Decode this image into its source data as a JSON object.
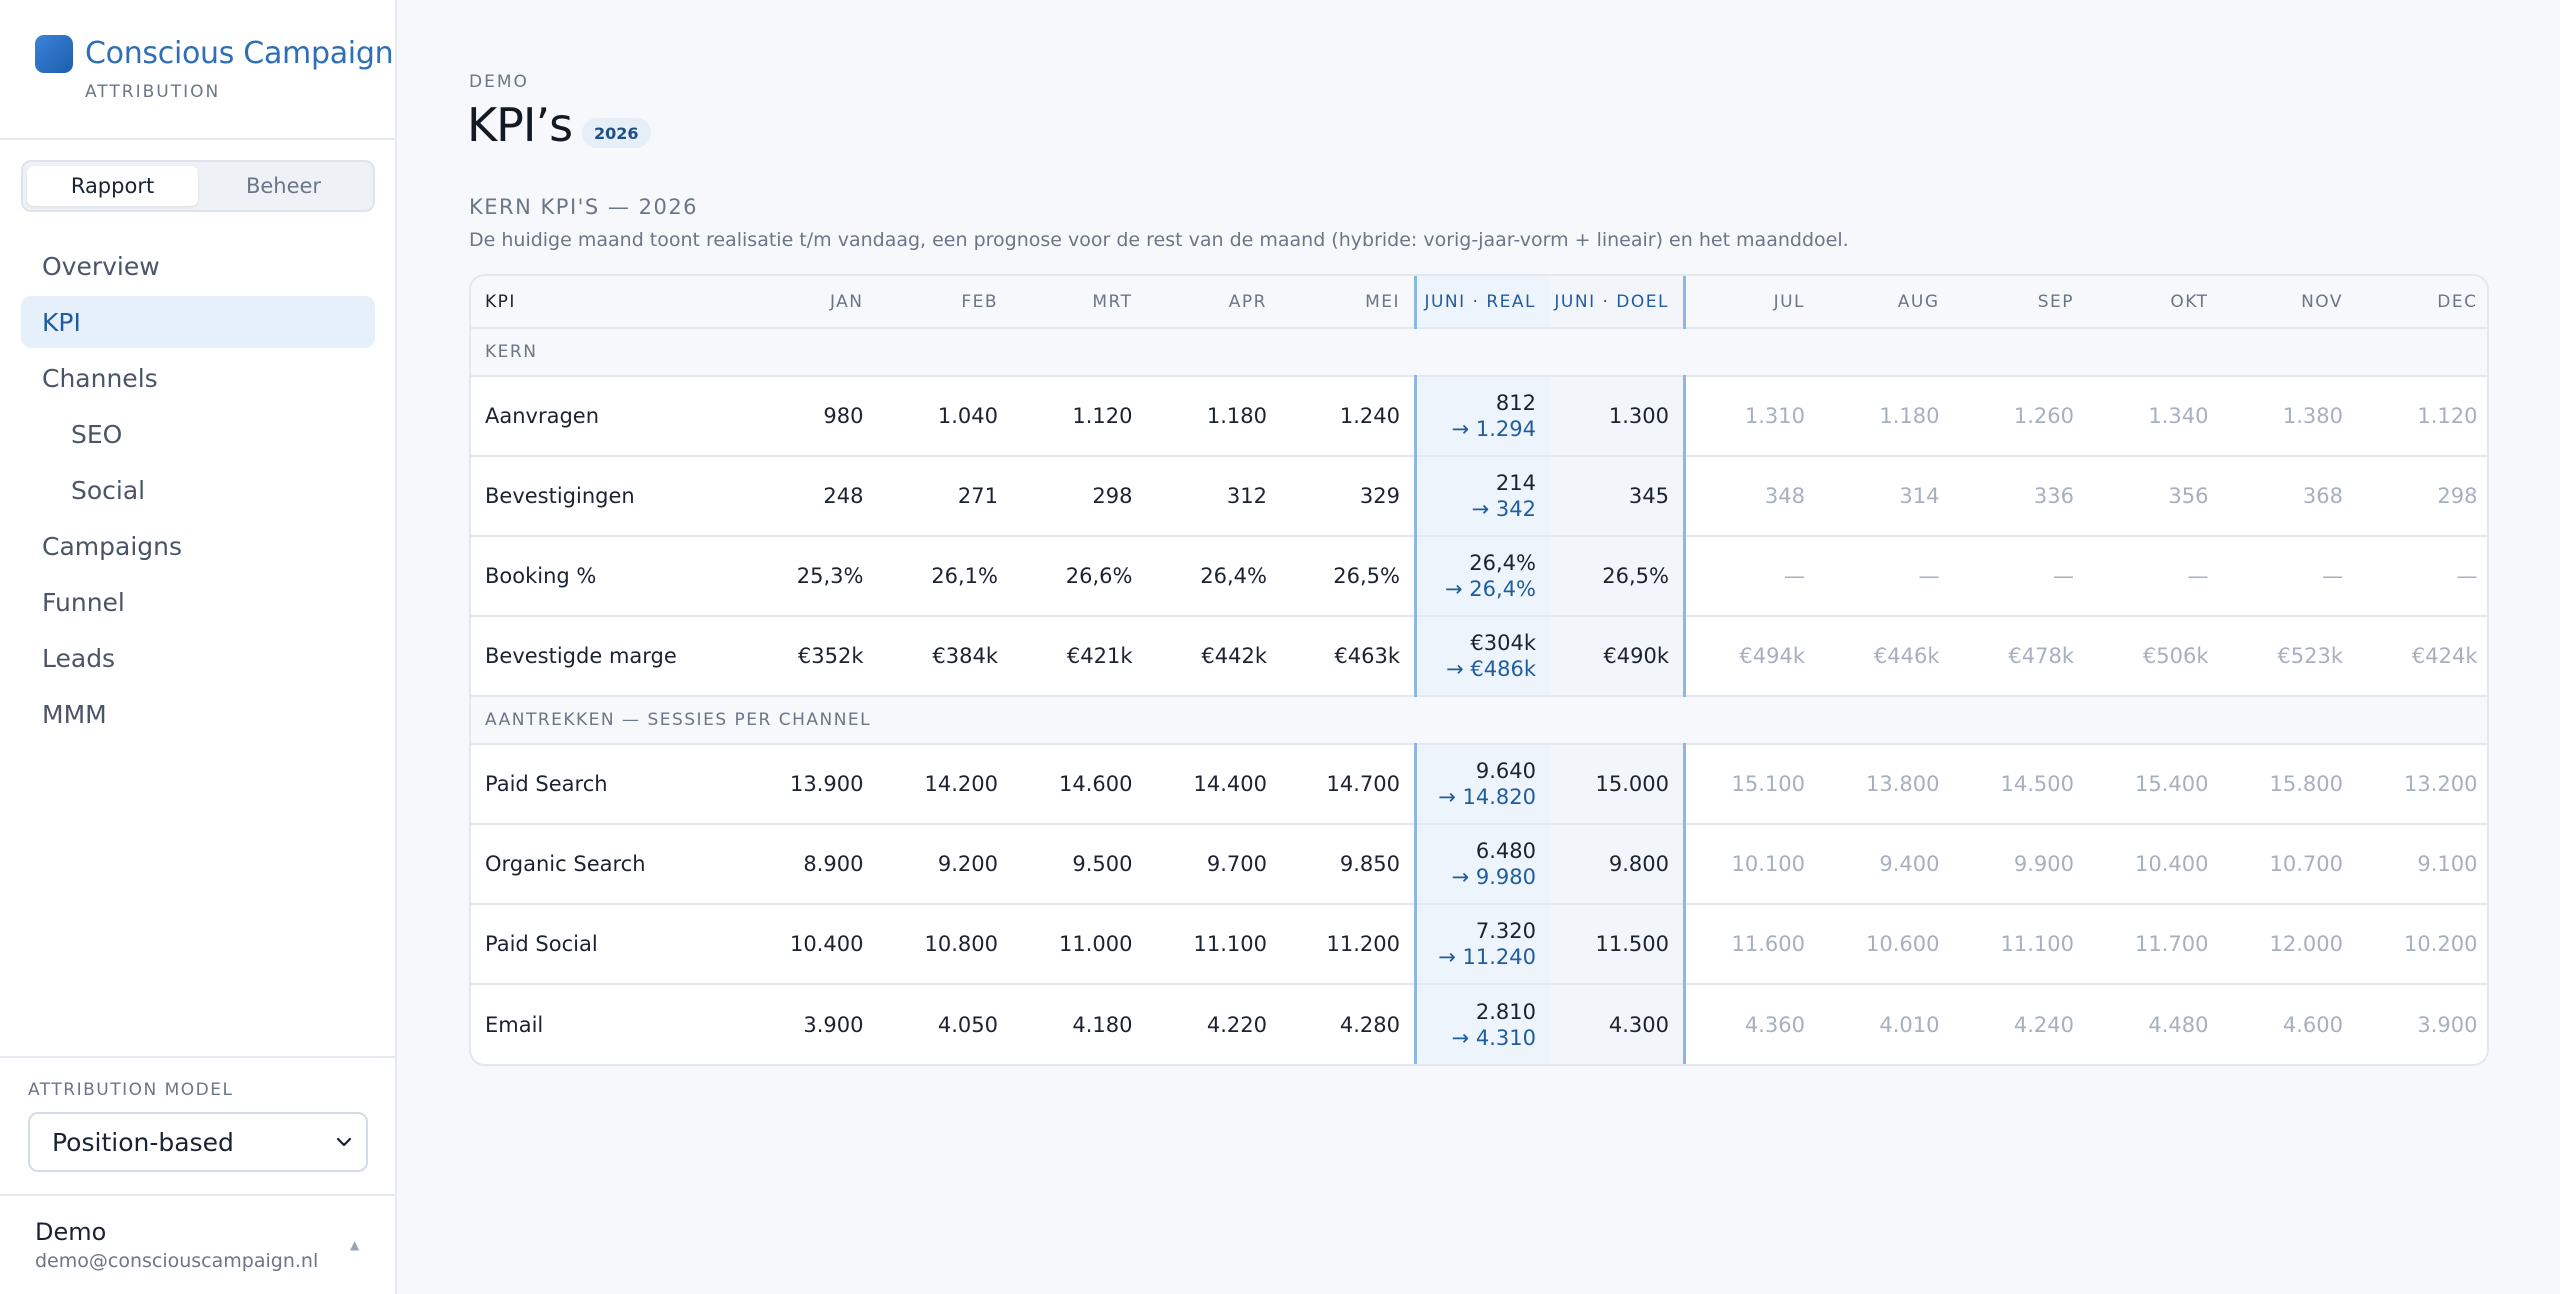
{
  "brand": {
    "name": "Conscious Campaign",
    "subtitle": "ATTRIBUTION"
  },
  "mode_switch": {
    "options": [
      "Rapport",
      "Beheer"
    ],
    "active": "Rapport"
  },
  "nav": [
    {
      "label": "Overview",
      "sub": false,
      "active": false
    },
    {
      "label": "KPI",
      "sub": false,
      "active": true
    },
    {
      "label": "Channels",
      "sub": false,
      "active": false
    },
    {
      "label": "SEO",
      "sub": true,
      "active": false
    },
    {
      "label": "Social",
      "sub": true,
      "active": false
    },
    {
      "label": "Campaigns",
      "sub": false,
      "active": false
    },
    {
      "label": "Funnel",
      "sub": false,
      "active": false
    },
    {
      "label": "Leads",
      "sub": false,
      "active": false
    },
    {
      "label": "MMM",
      "sub": false,
      "active": false
    }
  ],
  "attribution": {
    "label": "ATTRIBUTION MODEL",
    "value": "Position-based"
  },
  "user": {
    "name": "Demo",
    "email": "demo@consciouscampaign.nl"
  },
  "header": {
    "eyebrow": "DEMO",
    "title": "KPI’s",
    "year": "2026"
  },
  "section": {
    "title": "KERN KPI'S — 2026",
    "description": "De huidige maand toont realisatie t/m vandaag, een prognose voor de rest van de maand (hybride: vorig-jaar-vorm + lineair) en het maanddoel."
  },
  "table": {
    "columns": [
      "KPI",
      "JAN",
      "FEB",
      "MRT",
      "APR",
      "MEI",
      "JUNI · REAL",
      "JUNI · DOEL",
      "JUL",
      "AUG",
      "SEP",
      "OKT",
      "NOV",
      "DEC"
    ],
    "groups": [
      {
        "label": "KERN",
        "rows": [
          {
            "kpi": "Aanvragen",
            "past": [
              "980",
              "1.040",
              "1.120",
              "1.180",
              "1.240"
            ],
            "real": "812",
            "proj": "→ 1.294",
            "goal": "1.300",
            "future": [
              "1.310",
              "1.180",
              "1.260",
              "1.340",
              "1.380",
              "1.120"
            ]
          },
          {
            "kpi": "Bevestigingen",
            "past": [
              "248",
              "271",
              "298",
              "312",
              "329"
            ],
            "real": "214",
            "proj": "→ 342",
            "goal": "345",
            "future": [
              "348",
              "314",
              "336",
              "356",
              "368",
              "298"
            ]
          },
          {
            "kpi": "Booking %",
            "past": [
              "25,3%",
              "26,1%",
              "26,6%",
              "26,4%",
              "26,5%"
            ],
            "real": "26,4%",
            "proj": "→ 26,4%",
            "goal": "26,5%",
            "future": [
              "—",
              "—",
              "—",
              "—",
              "—",
              "—"
            ]
          },
          {
            "kpi": "Bevestigde marge",
            "past": [
              "€352k",
              "€384k",
              "€421k",
              "€442k",
              "€463k"
            ],
            "real": "€304k",
            "proj": "→ €486k",
            "goal": "€490k",
            "future": [
              "€494k",
              "€446k",
              "€478k",
              "€506k",
              "€523k",
              "€424k"
            ]
          }
        ]
      },
      {
        "label": "AANTREKKEN — SESSIES PER CHANNEL",
        "rows": [
          {
            "kpi": "Paid Search",
            "past": [
              "13.900",
              "14.200",
              "14.600",
              "14.400",
              "14.700"
            ],
            "real": "9.640",
            "proj": "→ 14.820",
            "goal": "15.000",
            "future": [
              "15.100",
              "13.800",
              "14.500",
              "15.400",
              "15.800",
              "13.200"
            ]
          },
          {
            "kpi": "Organic Search",
            "past": [
              "8.900",
              "9.200",
              "9.500",
              "9.700",
              "9.850"
            ],
            "real": "6.480",
            "proj": "→ 9.980",
            "goal": "9.800",
            "future": [
              "10.100",
              "9.400",
              "9.900",
              "10.400",
              "10.700",
              "9.100"
            ]
          },
          {
            "kpi": "Paid Social",
            "past": [
              "10.400",
              "10.800",
              "11.000",
              "11.100",
              "11.200"
            ],
            "real": "7.320",
            "proj": "→ 11.240",
            "goal": "11.500",
            "future": [
              "11.600",
              "10.600",
              "11.100",
              "11.700",
              "12.000",
              "10.200"
            ]
          },
          {
            "kpi": "Email",
            "past": [
              "3.900",
              "4.050",
              "4.180",
              "4.220",
              "4.280"
            ],
            "real": "2.810",
            "proj": "→ 4.310",
            "goal": "4.300",
            "future": [
              "4.360",
              "4.010",
              "4.240",
              "4.480",
              "4.600",
              "3.900"
            ]
          }
        ]
      }
    ]
  }
}
